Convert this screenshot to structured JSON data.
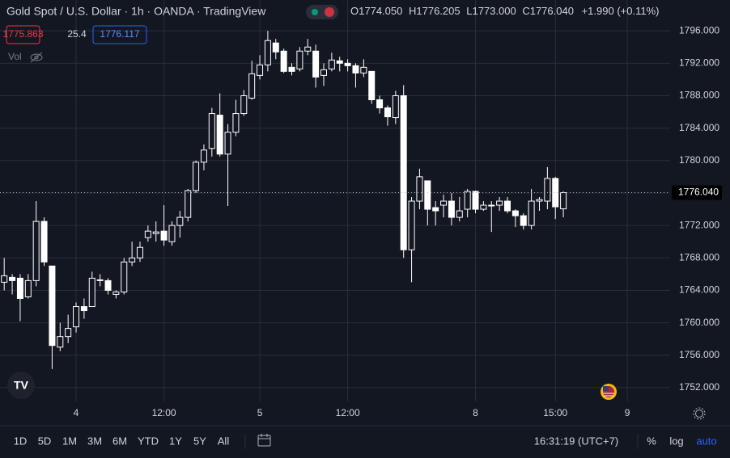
{
  "header": {
    "title": "Gold Spot / U.S. Dollar · 1h · OANDA · TradingView",
    "ohlc": [
      {
        "key": "O",
        "value": "1774.050"
      },
      {
        "key": "H",
        "value": "1776.205"
      },
      {
        "key": "L",
        "value": "1773.000"
      },
      {
        "key": "C",
        "value": "1776.040"
      }
    ],
    "change": "+1.990 (+0.11%)",
    "bid": "1775.863",
    "spread": "25.4",
    "ask": "1776.117",
    "volume_label": "Vol"
  },
  "chart_data": {
    "type": "candlestick",
    "categories": [
      null,
      null,
      null,
      null,
      null,
      null,
      null,
      null,
      null,
      "4",
      null,
      null,
      null,
      null,
      null,
      null,
      null,
      null,
      null,
      null,
      "12:00",
      null,
      null,
      null,
      null,
      null,
      null,
      null,
      null,
      null,
      null,
      null,
      "5",
      null,
      null,
      null,
      null,
      null,
      null,
      null,
      null,
      null,
      null,
      "12:00",
      null,
      null,
      null,
      null,
      null,
      null,
      null,
      null,
      null,
      null,
      null,
      null,
      null,
      null,
      null,
      "8",
      null,
      null,
      null,
      null,
      null,
      null,
      null,
      null,
      null,
      "15:00",
      null,
      null,
      null,
      null,
      null,
      null,
      null,
      null,
      "9"
    ],
    "open": [
      1765.0,
      1765.6,
      1765.5,
      1763.2,
      1765.2,
      1772.5,
      1767,
      1757,
      1758.3,
      1759.5,
      1762,
      1762,
      1765.3,
      1765.2,
      1763.5,
      1763.8,
      1767.5,
      1768,
      1770.5,
      1771,
      1771.3,
      1770,
      1772,
      1773,
      1776.3,
      1779.8,
      1781.5,
      1785.6,
      1780.8,
      1783.5,
      1785.8,
      1787.7,
      1790.5,
      1791.8,
      1794.5,
      1793.5,
      1791.5,
      1791.3,
      1793.5,
      1793.5,
      1790.5,
      1791.3,
      1792.3,
      1792,
      1791.7,
      1790.8,
      1791,
      1787.5,
      1786.5,
      1785.3,
      1788,
      1769,
      1775,
      1777.5,
      1774.2,
      1774.5,
      1775,
      1773,
      1774,
      1776.2,
      1774,
      1774.5,
      1774.5,
      1775,
      1773.8,
      1773.2,
      1772,
      1775,
      1775,
      1777.8,
      1774.05,
      null,
      null,
      null,
      null,
      null,
      null,
      null,
      null
    ],
    "high": [
      1768,
      1766,
      1766,
      1766,
      1775,
      1773,
      1767,
      1760,
      1761,
      1762.5,
      1763,
      1766.3,
      1766,
      1765.5,
      1764,
      1768,
      1770,
      1770,
      1772,
      1772.5,
      1774.5,
      1772.5,
      1773.8,
      1776.5,
      1780,
      1782,
      1786.5,
      1788.3,
      1784.5,
      1787.5,
      1788.7,
      1792.3,
      1793,
      1796,
      1795,
      1793.8,
      1792,
      1794,
      1795,
      1794.3,
      1792,
      1793.3,
      1792.8,
      1792.5,
      1792,
      1792.5,
      1791,
      1788,
      1786.8,
      1788.6,
      1789.3,
      1775.5,
      1779,
      1777.5,
      1775,
      1775.8,
      1776,
      1775.5,
      1776.5,
      1776.3,
      1775,
      1775,
      1775.5,
      1775.5,
      1774,
      1773.5,
      1776.5,
      1775.5,
      1779.2,
      1778,
      1776.205,
      null,
      null,
      null,
      null,
      null,
      null,
      null,
      null
    ],
    "low": [
      1764,
      1763.5,
      1760.2,
      1763,
      1764.5,
      1767,
      1754.3,
      1756.5,
      1757.5,
      1758.8,
      1760.5,
      1762,
      1764.5,
      1763.5,
      1763,
      1763.5,
      1767,
      1767.5,
      1770,
      1770,
      1769.5,
      1769.5,
      1770.5,
      1772.5,
      1776,
      1778.8,
      1780.5,
      1780.5,
      1774.4,
      1783,
      1785.5,
      1787.5,
      1790,
      1791,
      1792.5,
      1790.8,
      1790.5,
      1791,
      1793,
      1789,
      1789.2,
      1791,
      1791,
      1791,
      1789,
      1790.3,
      1787,
      1785.8,
      1784.3,
      1784.5,
      1768,
      1765,
      1774,
      1772,
      1772,
      1773,
      1772,
      1772.5,
      1773,
      1773.5,
      1773.8,
      1771.2,
      1773.8,
      1773.5,
      1771.8,
      1771.5,
      1771.5,
      1773.8,
      1774,
      1772.8,
      1773,
      null,
      null,
      null,
      null,
      null,
      null,
      null,
      null
    ],
    "close": [
      1765.8,
      1765.2,
      1763,
      1765.2,
      1772.5,
      1767.5,
      1757.2,
      1758.3,
      1759.3,
      1762,
      1761.5,
      1765.5,
      1765.2,
      1764,
      1763.8,
      1767.5,
      1768,
      1769.3,
      1771.3,
      1771.2,
      1770.2,
      1772,
      1773,
      1776.3,
      1779.8,
      1781.3,
      1785.8,
      1780.8,
      1783.5,
      1785.8,
      1788,
      1790.7,
      1791.8,
      1794.8,
      1793.4,
      1791,
      1791,
      1793.5,
      1794,
      1790.3,
      1791.2,
      1792.4,
      1792,
      1791.7,
      1790.8,
      1791.5,
      1787.5,
      1786.5,
      1785.4,
      1788,
      1769,
      1775,
      1778,
      1774,
      1773.8,
      1775,
      1773,
      1773.8,
      1776.2,
      1774,
      1774.5,
      1774.4,
      1775,
      1773.8,
      1773.2,
      1772,
      1775,
      1775.2,
      1777.8,
      1774.3,
      1776.04,
      null,
      null,
      null,
      null,
      null,
      null,
      null,
      null
    ],
    "up_color": "#131722",
    "down_color": "#ffffff",
    "wick_color": "#ffffff",
    "ylim": [
      1750.3,
      1799.8
    ],
    "yticks": [
      {
        "value": 1752,
        "label": "1752.000"
      },
      {
        "value": 1756,
        "label": "1756.000"
      },
      {
        "value": 1760,
        "label": "1760.000"
      },
      {
        "value": 1764,
        "label": "1764.000"
      },
      {
        "value": 1768,
        "label": "1768.000"
      },
      {
        "value": 1772,
        "label": "1772.000"
      },
      {
        "value": 1776,
        "label": "1776.000"
      },
      {
        "value": 1780,
        "label": "1780.000"
      },
      {
        "value": 1784,
        "label": "1784.000"
      },
      {
        "value": 1788,
        "label": "1788.000"
      },
      {
        "value": 1792,
        "label": "1792.000"
      },
      {
        "value": 1796,
        "label": "1796.000"
      }
    ],
    "grid": true,
    "last_price": {
      "value": 1776.04,
      "label": "1776.040"
    }
  },
  "toolbar": {
    "ranges": [
      "1D",
      "5D",
      "1M",
      "3M",
      "6M",
      "YTD",
      "1Y",
      "5Y",
      "All"
    ],
    "clock": "16:31:19 (UTC+7)",
    "options": [
      "%",
      "log",
      "auto"
    ]
  }
}
